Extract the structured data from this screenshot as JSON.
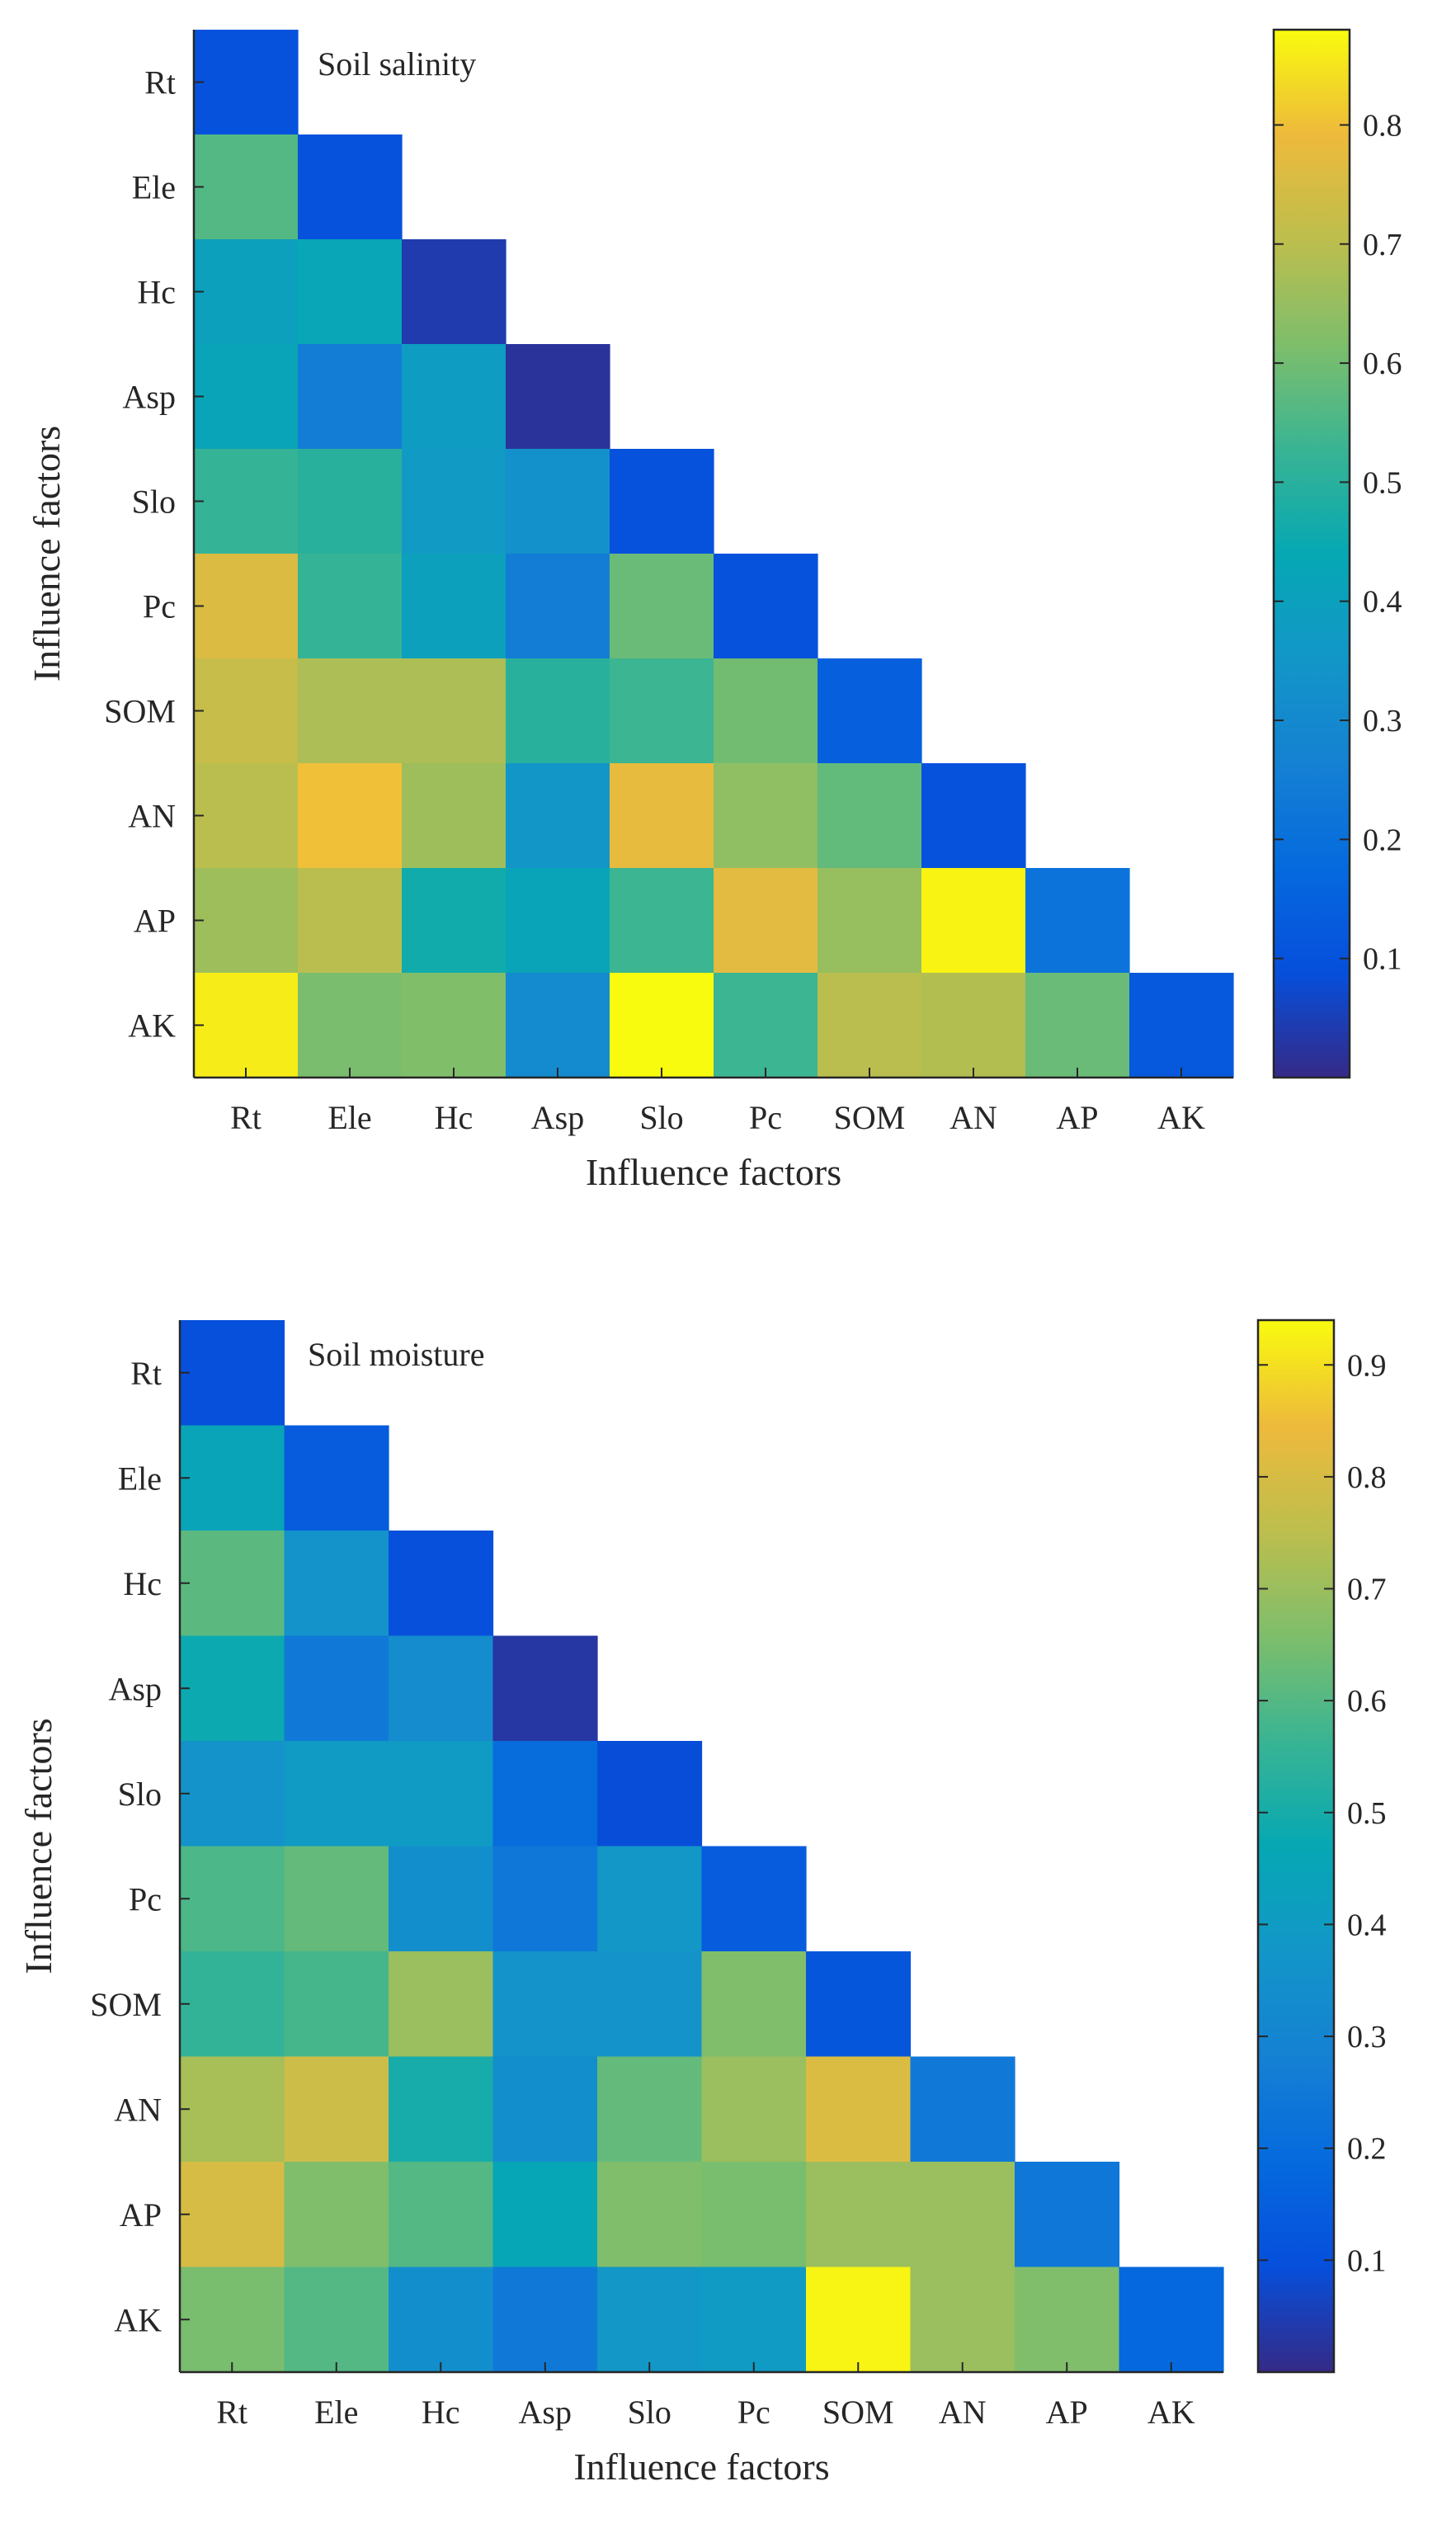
{
  "chart_data": [
    {
      "type": "heatmap",
      "title": "Soil salinity",
      "xlabel": "Influence factors",
      "ylabel": "Influence factors",
      "categories": [
        "Rt",
        "Ele",
        "Hc",
        "Asp",
        "Slo",
        "Pc",
        "SOM",
        "AN",
        "AP",
        "AK"
      ],
      "matrix_layout": "lower-triangular, row i has values for columns 0..i",
      "values": [
        [
          0.1
        ],
        [
          0.56,
          0.1
        ],
        [
          0.4,
          0.43,
          0.04
        ],
        [
          0.42,
          0.25,
          0.38,
          0.02
        ],
        [
          0.52,
          0.5,
          0.37,
          0.33,
          0.1
        ],
        [
          0.76,
          0.52,
          0.4,
          0.25,
          0.59,
          0.1
        ],
        [
          0.72,
          0.68,
          0.68,
          0.5,
          0.53,
          0.6,
          0.14
        ],
        [
          0.7,
          0.8,
          0.66,
          0.35,
          0.78,
          0.64,
          0.58,
          0.1
        ],
        [
          0.66,
          0.7,
          0.46,
          0.42,
          0.53,
          0.77,
          0.65,
          0.87,
          0.21
        ],
        [
          0.86,
          0.61,
          0.62,
          0.3,
          0.88,
          0.53,
          0.7,
          0.69,
          0.59,
          0.12
        ]
      ],
      "colorbar": {
        "range": [
          0.0,
          0.88
        ],
        "ticks": [
          0.1,
          0.2,
          0.3,
          0.4,
          0.5,
          0.6,
          0.7,
          0.8
        ]
      }
    },
    {
      "type": "heatmap",
      "title": "Soil moisture",
      "xlabel": "Influence factors",
      "ylabel": "Influence factors",
      "categories": [
        "Rt",
        "Ele",
        "Hc",
        "Asp",
        "Slo",
        "Pc",
        "SOM",
        "AN",
        "AP",
        "AK"
      ],
      "matrix_layout": "lower-triangular, row i has values for columns 0..i",
      "values": [
        [
          0.1
        ],
        [
          0.45,
          0.14
        ],
        [
          0.61,
          0.36,
          0.1
        ],
        [
          0.48,
          0.25,
          0.33,
          0.03
        ],
        [
          0.36,
          0.4,
          0.4,
          0.2,
          0.09
        ],
        [
          0.59,
          0.62,
          0.34,
          0.24,
          0.38,
          0.14
        ],
        [
          0.55,
          0.58,
          0.7,
          0.36,
          0.36,
          0.66,
          0.12
        ],
        [
          0.72,
          0.78,
          0.5,
          0.34,
          0.62,
          0.7,
          0.81,
          0.25
        ],
        [
          0.8,
          0.66,
          0.6,
          0.46,
          0.66,
          0.65,
          0.7,
          0.7,
          0.24
        ],
        [
          0.65,
          0.6,
          0.34,
          0.25,
          0.38,
          0.4,
          0.93,
          0.7,
          0.66,
          0.18
        ]
      ],
      "colorbar": {
        "range": [
          0.0,
          0.94
        ],
        "ticks": [
          0.1,
          0.2,
          0.3,
          0.4,
          0.5,
          0.6,
          0.7,
          0.8,
          0.9
        ]
      }
    }
  ]
}
